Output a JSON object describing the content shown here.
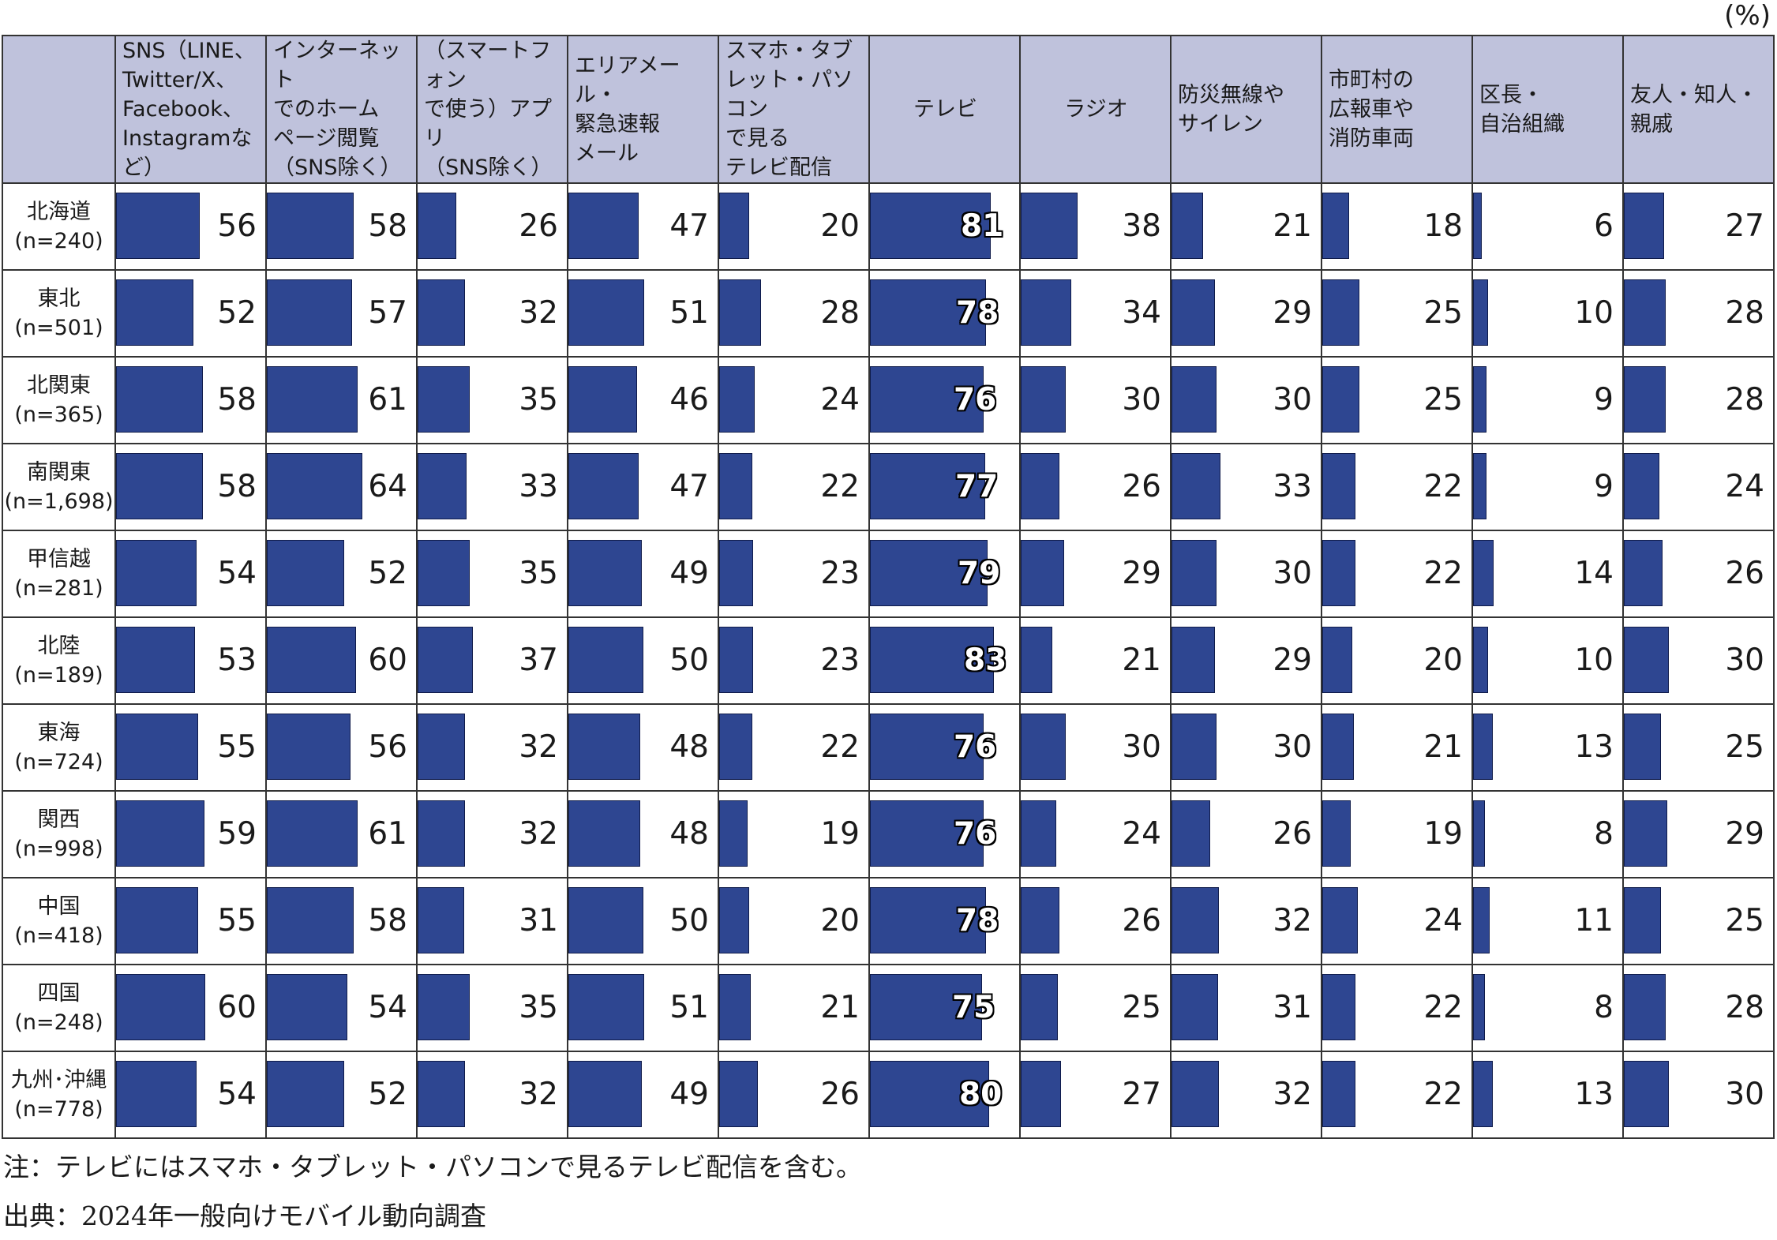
{
  "unit_label": "(%)",
  "columns": [
    "SNS（LINE、\nTwitter/X、\nFacebook、\nInstagramなど）",
    "インターネット\nでのホーム\nページ閲覧\n（SNS除く）",
    "（スマートフォン\nで使う）アプリ\n（SNS除く）",
    "エリアメール・\n緊急速報\nメール",
    "スマホ・タブ\nレット・パソコン\nで見る\nテレビ配信",
    "テレビ",
    "ラジオ",
    "防災無線や\nサイレン",
    "市町村の\n広報車や\n消防車両",
    "区長・\n自治組織",
    "友人・知人・\n親戚"
  ],
  "rows": [
    {
      "label": "北海道\n(n=240)",
      "values": [
        56,
        58,
        26,
        47,
        20,
        81,
        38,
        21,
        18,
        6,
        27
      ]
    },
    {
      "label": "東北\n(n=501)",
      "values": [
        52,
        57,
        32,
        51,
        28,
        78,
        34,
        29,
        25,
        10,
        28
      ]
    },
    {
      "label": "北関東\n(n=365)",
      "values": [
        58,
        61,
        35,
        46,
        24,
        76,
        30,
        30,
        25,
        9,
        28
      ]
    },
    {
      "label": "南関東\n(n=1,698)",
      "values": [
        58,
        64,
        33,
        47,
        22,
        77,
        26,
        33,
        22,
        9,
        24
      ]
    },
    {
      "label": "甲信越\n(n=281)",
      "values": [
        54,
        52,
        35,
        49,
        23,
        79,
        29,
        30,
        22,
        14,
        26
      ]
    },
    {
      "label": "北陸\n(n=189)",
      "values": [
        53,
        60,
        37,
        50,
        23,
        83,
        21,
        29,
        20,
        10,
        30
      ]
    },
    {
      "label": "東海\n(n=724)",
      "values": [
        55,
        56,
        32,
        48,
        22,
        76,
        30,
        30,
        21,
        13,
        25
      ]
    },
    {
      "label": "関西\n(n=998)",
      "values": [
        59,
        61,
        32,
        48,
        19,
        76,
        24,
        26,
        19,
        8,
        29
      ]
    },
    {
      "label": "中国\n(n=418)",
      "values": [
        55,
        58,
        31,
        50,
        20,
        78,
        26,
        32,
        24,
        11,
        25
      ]
    },
    {
      "label": "四国\n(n=248)",
      "values": [
        60,
        54,
        35,
        51,
        21,
        75,
        25,
        31,
        22,
        8,
        28
      ]
    },
    {
      "label": "九州･沖縄\n(n=778)",
      "values": [
        54,
        52,
        32,
        49,
        26,
        80,
        27,
        32,
        22,
        13,
        30
      ]
    }
  ],
  "notes": {
    "note": "注：テレビにはスマホ・タブレット・パソコンで見るテレビ配信を含む。",
    "source": "出典：2024年一般向けモバイル動向調査"
  },
  "chart_data": {
    "type": "table",
    "title": "",
    "unit": "%",
    "bar_color": "#2e4691",
    "header_color": "#bfc2dc",
    "value_max": 100
  }
}
